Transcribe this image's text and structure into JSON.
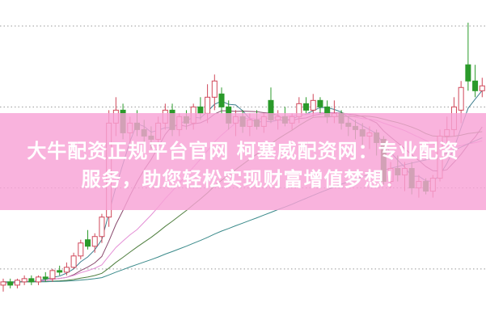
{
  "banner": {
    "line1": "大牛配资正规平台官网 柯塞威配资网：专业配资",
    "line2": "服务，助您轻松实现财富增值梦想！",
    "color": "#f8a2d6"
  },
  "chart_data": {
    "type": "candlestick",
    "title": "",
    "xlabel": "",
    "ylabel": "",
    "ylim": [
      0,
      100
    ],
    "grid": "horizontal dotted",
    "gridlines": [
      92,
      67,
      42,
      17
    ],
    "up_color": "#d0485a",
    "down_color": "#2a9a2a",
    "ohlc": [
      [
        12,
        14,
        10,
        13
      ],
      [
        13,
        14,
        11,
        12
      ],
      [
        12,
        14,
        11,
        13.5
      ],
      [
        13,
        15,
        12,
        14
      ],
      [
        14,
        15,
        12,
        13
      ],
      [
        13,
        15,
        12,
        14.5
      ],
      [
        14.5,
        16,
        13,
        14
      ],
      [
        14,
        17,
        13,
        16.5
      ],
      [
        16.5,
        18,
        15,
        16
      ],
      [
        16,
        19,
        15,
        17.5
      ],
      [
        17.5,
        22,
        17,
        21
      ],
      [
        21,
        26,
        20,
        25
      ],
      [
        26,
        29,
        23,
        24
      ],
      [
        24,
        28,
        22,
        27
      ],
      [
        27,
        34,
        25,
        33
      ],
      [
        33,
        66,
        30,
        62
      ],
      [
        62,
        70,
        58,
        66
      ],
      [
        66,
        68,
        57,
        59
      ],
      [
        59,
        64,
        56,
        62
      ],
      [
        62,
        66,
        58,
        60
      ],
      [
        60,
        63,
        56,
        58
      ],
      [
        58,
        61,
        54,
        57
      ],
      [
        57,
        64,
        55,
        62
      ],
      [
        62,
        68,
        60,
        66
      ],
      [
        66,
        68,
        58,
        60
      ],
      [
        60,
        65,
        58,
        64
      ],
      [
        64,
        66,
        60,
        62
      ],
      [
        62,
        68,
        60,
        67
      ],
      [
        67,
        70,
        63,
        65
      ],
      [
        65,
        74,
        62,
        70
      ],
      [
        70,
        77,
        66,
        75
      ],
      [
        71,
        73,
        65,
        67
      ],
      [
        67,
        69,
        60,
        62
      ],
      [
        62,
        66,
        58,
        64
      ],
      [
        64,
        66,
        59,
        61
      ],
      [
        61,
        65,
        58,
        63
      ],
      [
        63,
        66,
        60,
        61
      ],
      [
        61,
        65,
        59,
        64
      ],
      [
        69,
        73,
        62,
        63
      ],
      [
        63,
        66,
        60,
        64
      ],
      [
        64,
        67,
        61,
        62
      ],
      [
        62,
        65,
        60,
        64
      ],
      [
        64,
        70,
        62,
        68
      ],
      [
        68,
        70,
        65,
        66
      ],
      [
        66,
        71,
        64,
        69
      ],
      [
        69,
        70,
        65,
        67
      ],
      [
        67,
        69,
        62,
        64
      ],
      [
        64,
        69,
        62,
        65
      ],
      [
        65,
        66,
        60,
        62
      ],
      [
        62,
        64,
        58,
        61
      ],
      [
        61,
        63,
        57,
        60
      ],
      [
        60,
        62,
        55,
        58
      ],
      [
        58,
        61,
        54,
        59
      ],
      [
        59,
        60,
        52,
        56
      ],
      [
        57,
        58,
        43,
        44
      ],
      [
        44,
        50,
        42,
        48
      ],
      [
        48,
        52,
        44,
        46
      ],
      [
        46,
        50,
        41,
        48
      ],
      [
        48,
        50,
        40,
        42
      ],
      [
        42,
        46,
        39,
        44
      ],
      [
        44,
        45,
        40,
        41
      ],
      [
        41,
        46,
        39,
        45
      ],
      [
        45,
        60,
        44,
        58
      ],
      [
        58,
        64,
        55,
        60
      ],
      [
        60,
        70,
        58,
        67
      ],
      [
        66,
        75,
        62,
        73
      ],
      [
        80,
        93,
        72,
        75
      ],
      [
        75,
        80,
        70,
        72
      ],
      [
        72,
        76,
        70,
        73.5
      ]
    ],
    "moving_averages": [
      {
        "period": 5,
        "color": "#3f7f8f"
      },
      {
        "period": 10,
        "color": "#8a4a6e"
      },
      {
        "period": 20,
        "color": "#e48fd6"
      },
      {
        "period": 30,
        "color": "#4f7f3f"
      },
      {
        "period": 60,
        "color": "#3a8a8a"
      }
    ]
  }
}
